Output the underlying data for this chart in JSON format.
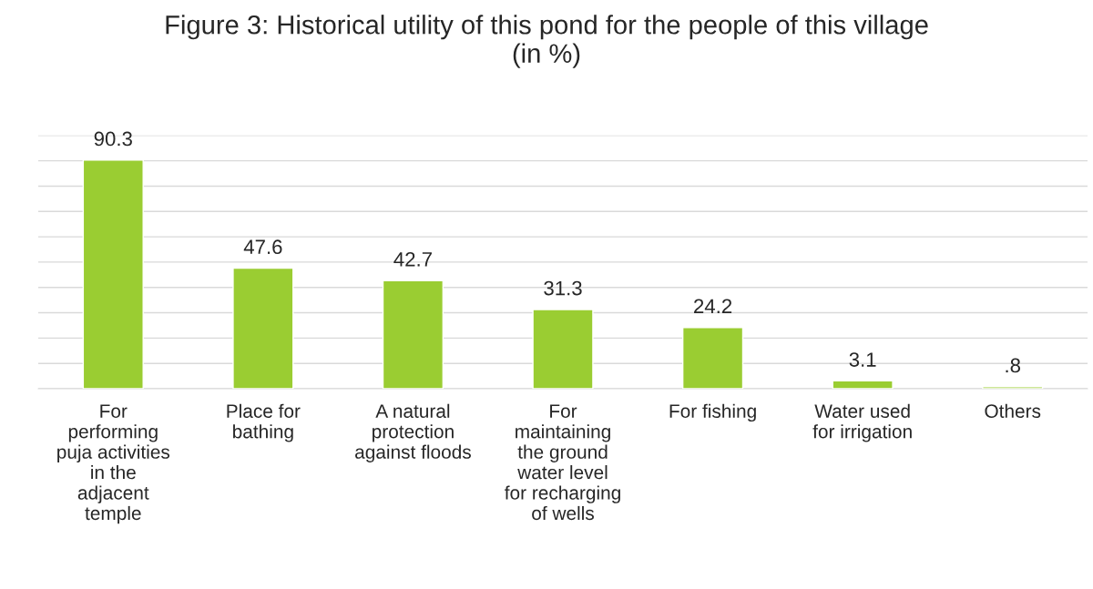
{
  "chart_data": {
    "type": "bar",
    "title": "Figure 3: Historical utility of this pond for the people of this village\n(in %)",
    "categories": [
      "For\nperforming\npuja activities\nin the\nadjacent\ntemple",
      "Place for\nbathing",
      "A natural\nprotection\nagainst floods",
      "For\nmaintaining\nthe ground\nwater level\nfor recharging\nof wells",
      "For fishing",
      "Water used\nfor irrigation",
      "Others"
    ],
    "values": [
      90.3,
      47.6,
      42.7,
      31.3,
      24.2,
      3.1,
      0.8
    ],
    "value_labels": [
      "90.3",
      "47.6",
      "42.7",
      "31.3",
      "24.2",
      "3.1",
      ".8"
    ],
    "color": "#9acd32",
    "ylim": [
      0,
      100
    ],
    "yticks": [
      {
        "value": 0,
        "label": null
      },
      {
        "value": 10,
        "label": null
      },
      {
        "value": 20,
        "label": null
      },
      {
        "value": 30,
        "label": null
      },
      {
        "value": 40,
        "label": null
      },
      {
        "value": 50,
        "label": null
      },
      {
        "value": 60,
        "label": null
      },
      {
        "value": 70,
        "label": null
      },
      {
        "value": 80,
        "label": null
      },
      {
        "value": 90,
        "label": null
      },
      {
        "value": 100,
        "label": null
      }
    ],
    "grid": "y",
    "tick_labels": "x"
  }
}
